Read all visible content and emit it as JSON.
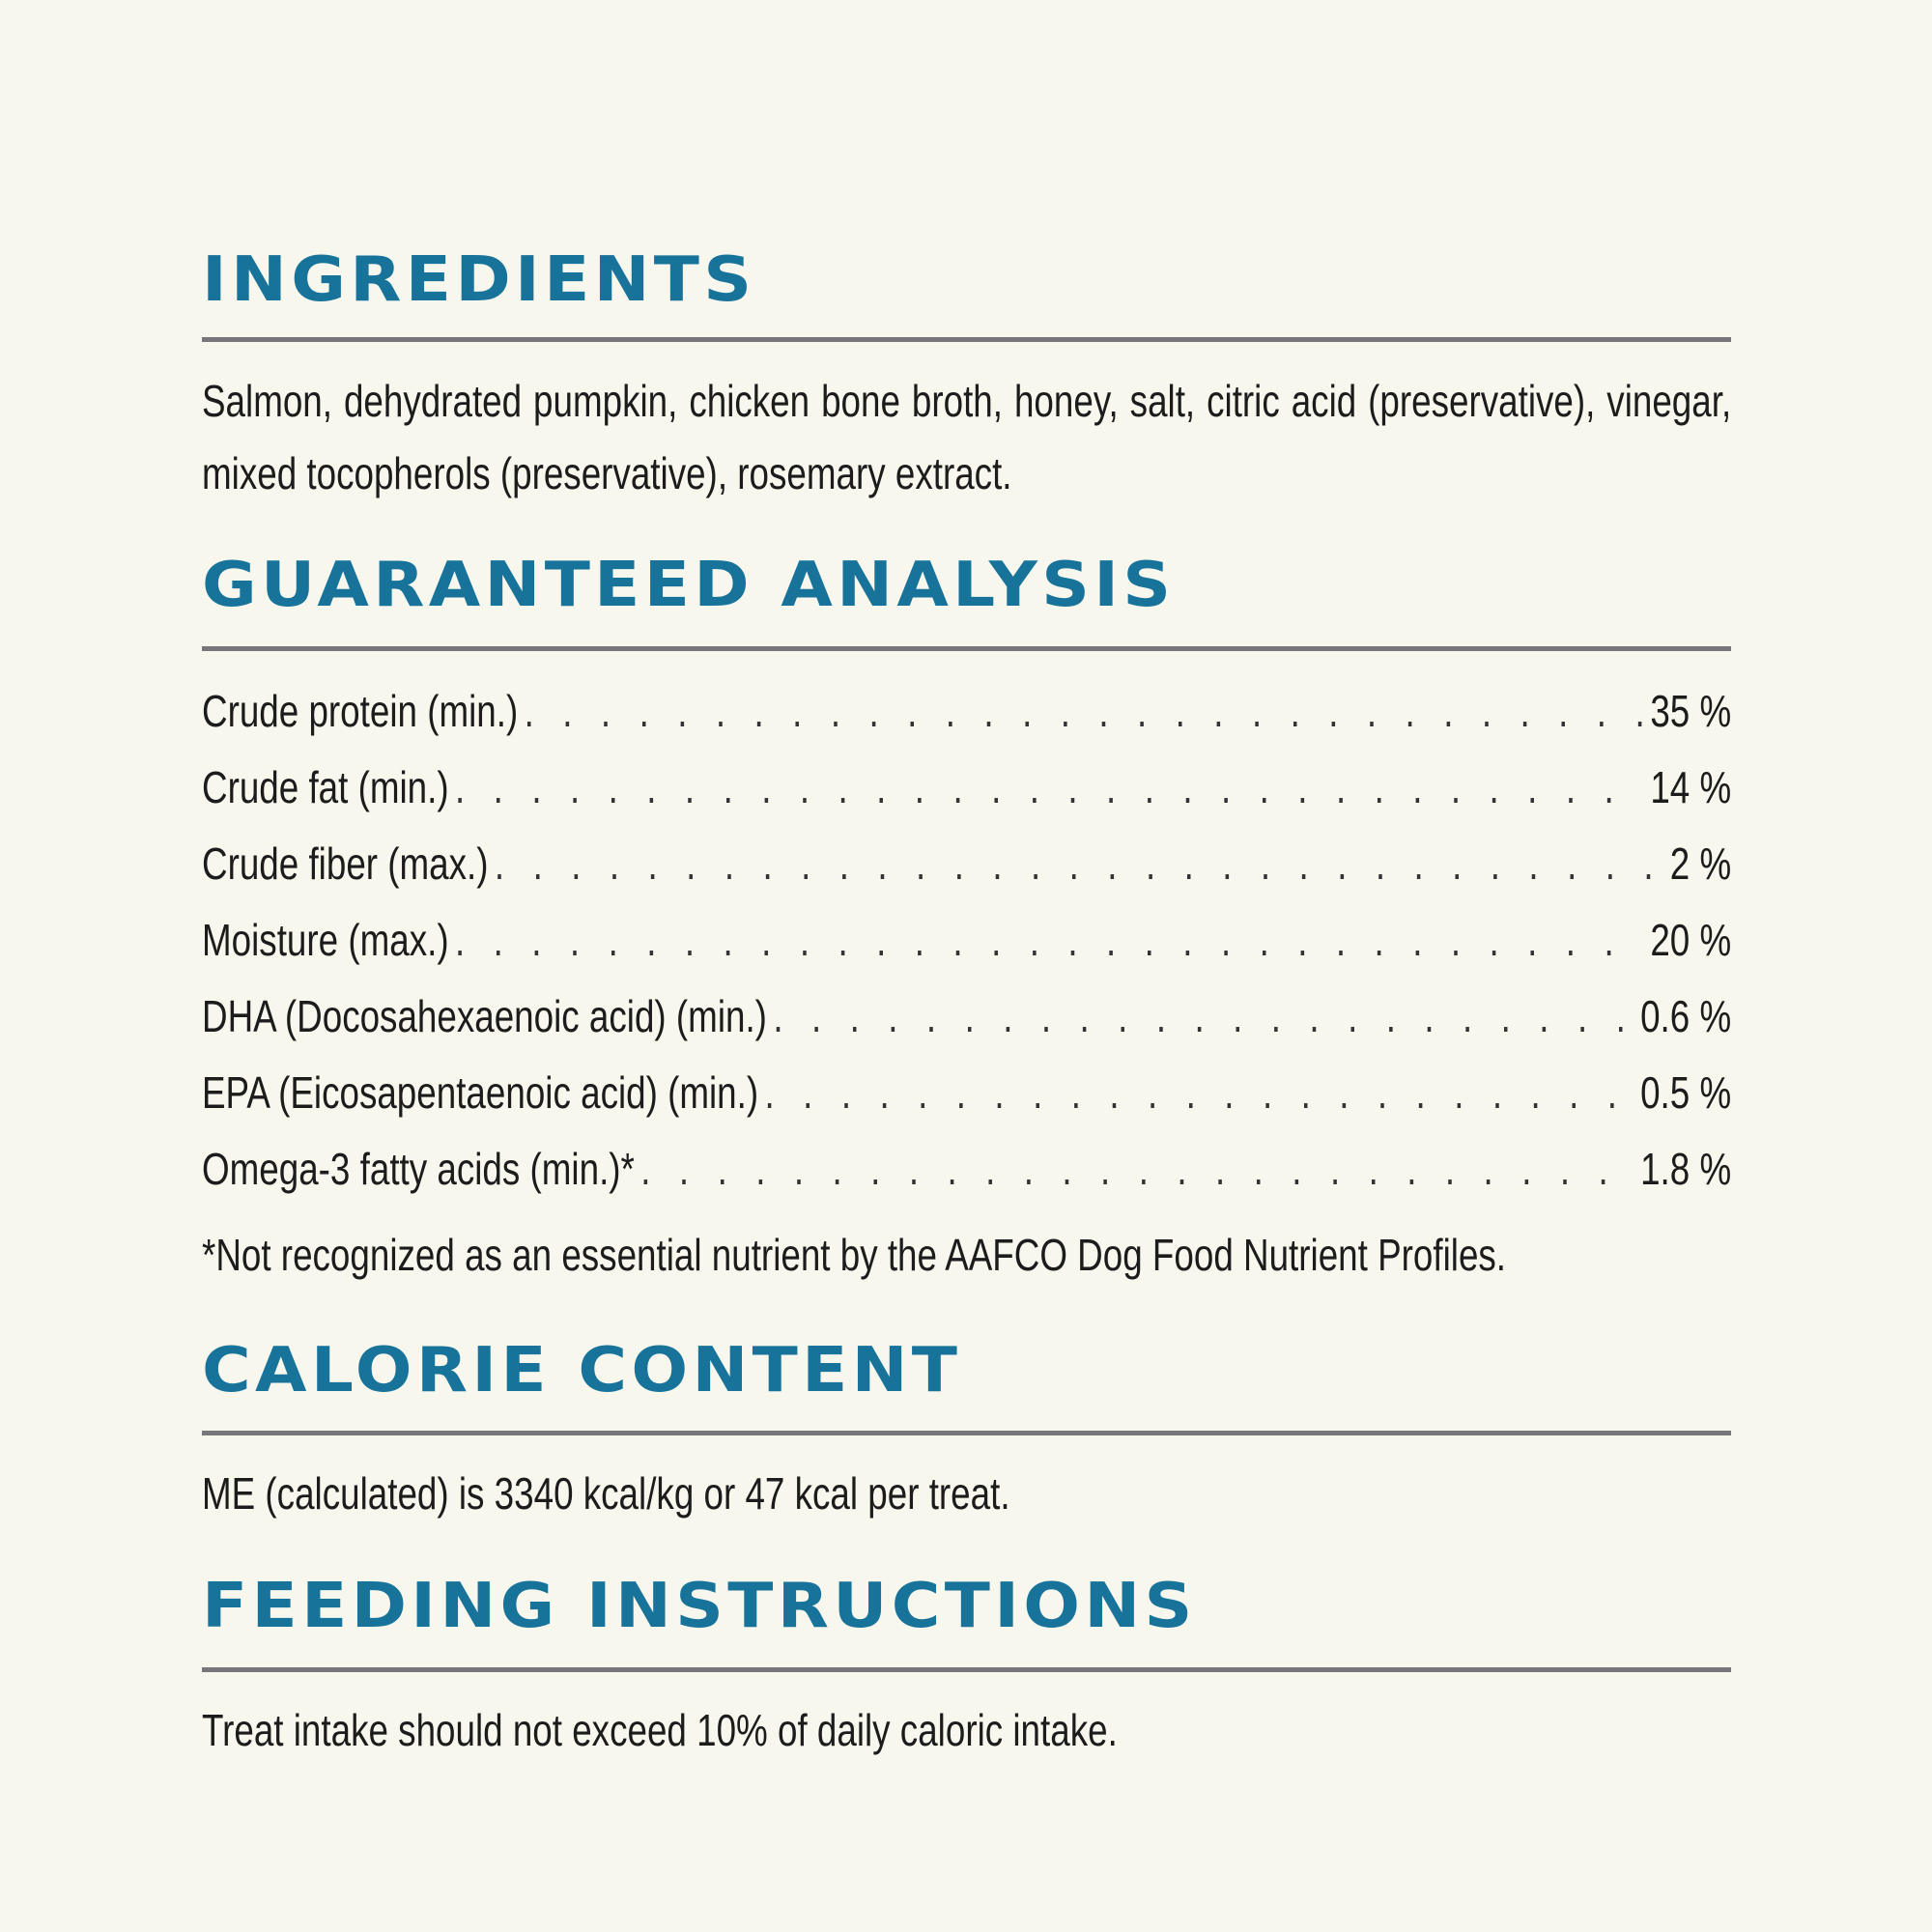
{
  "colors": {
    "heading": "#18739a",
    "rule": "#77767a",
    "background": "#f7f7ee"
  },
  "ingredients": {
    "title": "INGREDIENTS",
    "text": "Salmon, dehydrated pumpkin, chicken bone broth, honey, salt, citric acid (preservative), vinegar, mixed tocopherols (preservative), rosemary extract."
  },
  "analysis": {
    "title": "GUARANTEED ANALYSIS",
    "rows": [
      {
        "label": "Crude protein (min.)",
        "value": "35 %"
      },
      {
        "label": "Crude fat (min.)",
        "value": "14 %"
      },
      {
        "label": "Crude fiber (max.)",
        "value": "2 %"
      },
      {
        "label": "Moisture (max.)",
        "value": "20 %"
      },
      {
        "label": "DHA (Docosahexaenoic acid) (min.)",
        "value": "0.6 %"
      },
      {
        "label": "EPA (Eicosapentaenoic acid) (min.)",
        "value": "0.5 %"
      },
      {
        "label": "Omega-3 fatty acids (min.)*",
        "value": "1.8 %"
      }
    ],
    "footnote": "*Not recognized as an essential nutrient by the AAFCO Dog Food Nutrient Profiles."
  },
  "calorie": {
    "title": "CALORIE CONTENT",
    "text": "ME (calculated) is 3340 kcal/kg or 47 kcal per treat."
  },
  "feeding": {
    "title": "FEEDING INSTRUCTIONS",
    "text": "Treat intake should not exceed 10% of daily caloric intake."
  }
}
